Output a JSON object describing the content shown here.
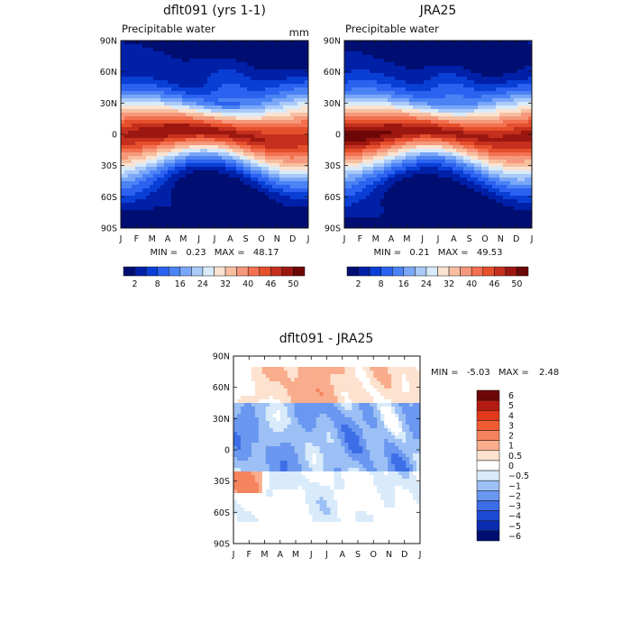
{
  "chart_data": [
    {
      "type": "heatmap",
      "title": "dflt091 (yrs 1-1)",
      "subtitle": "Precipitable water",
      "units": "mm",
      "stats": {
        "min_label": "MIN =",
        "min": "0.23",
        "max_label": "MAX =",
        "max": "48.17"
      },
      "x_ticks": [
        "J",
        "F",
        "M",
        "A",
        "M",
        "J",
        "J",
        "A",
        "S",
        "O",
        "N",
        "D",
        "J"
      ],
      "y_ticks": [
        "90N",
        "60N",
        "30N",
        "0",
        "30S",
        "60S",
        "90S"
      ],
      "y_range": [
        -90,
        90
      ],
      "x_range": [
        0,
        12
      ],
      "colorbar_levels": [
        2,
        8,
        16,
        24,
        32,
        40,
        46,
        50
      ],
      "colorbar_labels": [
        "2",
        "8",
        "16",
        "24",
        "32",
        "40",
        "46",
        "50"
      ],
      "peak_value": 48.17,
      "min_value": 0.23
    },
    {
      "type": "heatmap",
      "title": "JRA25",
      "subtitle": "Precipitable water",
      "units": "",
      "stats": {
        "min_label": "MIN =",
        "min": "0.21",
        "max_label": "MAX =",
        "max": "49.53"
      },
      "x_ticks": [
        "J",
        "F",
        "M",
        "A",
        "M",
        "J",
        "J",
        "A",
        "S",
        "O",
        "N",
        "D",
        "J"
      ],
      "y_ticks": [
        "90N",
        "60N",
        "30N",
        "0",
        "30S",
        "60S",
        "90S"
      ],
      "y_range": [
        -90,
        90
      ],
      "x_range": [
        0,
        12
      ],
      "colorbar_levels": [
        2,
        8,
        16,
        24,
        32,
        40,
        46,
        50
      ],
      "colorbar_labels": [
        "2",
        "8",
        "16",
        "24",
        "32",
        "40",
        "46",
        "50"
      ],
      "peak_value": 49.53,
      "min_value": 0.21
    },
    {
      "type": "heatmap",
      "title": "dflt091 - JRA25",
      "subtitle": "",
      "stats": {
        "min_label": "MIN =",
        "min": "-5.03",
        "max_label": "MAX =",
        "max": "2.48"
      },
      "x_ticks": [
        "J",
        "F",
        "M",
        "A",
        "M",
        "J",
        "J",
        "A",
        "S",
        "O",
        "N",
        "D",
        "J"
      ],
      "y_ticks": [
        "90N",
        "60N",
        "30N",
        "0",
        "30S",
        "60S",
        "90S"
      ],
      "y_range": [
        -90,
        90
      ],
      "x_range": [
        0,
        12
      ],
      "colorbar_levels": [
        6,
        5,
        4,
        3,
        2,
        1,
        0.5,
        0,
        -0.5,
        -1,
        -2,
        -3,
        -4,
        -5,
        -6
      ],
      "colorbar_labels": [
        "6",
        "5",
        "4",
        "3",
        "2",
        "1",
        "0.5",
        "0",
        "−0.5",
        "−1",
        "−2",
        "−3",
        "−4",
        "−5",
        "−6"
      ]
    }
  ],
  "colors": {
    "abs_palette": [
      "#000e72",
      "#0020a8",
      "#0a3fd6",
      "#2c62f0",
      "#4b83f5",
      "#7aa7f8",
      "#aacaf8",
      "#d9ebfa",
      "#fbe3d2",
      "#f7bfa0",
      "#f6987b",
      "#f37150",
      "#e54f2c",
      "#c4301d",
      "#9b1710",
      "#6d0707"
    ],
    "diff_palette": [
      "#6d0707",
      "#b41b12",
      "#e2381c",
      "#f05c32",
      "#f5845e",
      "#f9ad8c",
      "#fde2cf",
      "#ffffff",
      "#d9ebfa",
      "#9cc0f5",
      "#6a97f0",
      "#3d6ee8",
      "#1d49d4",
      "#0a2db0",
      "#000e72"
    ]
  }
}
